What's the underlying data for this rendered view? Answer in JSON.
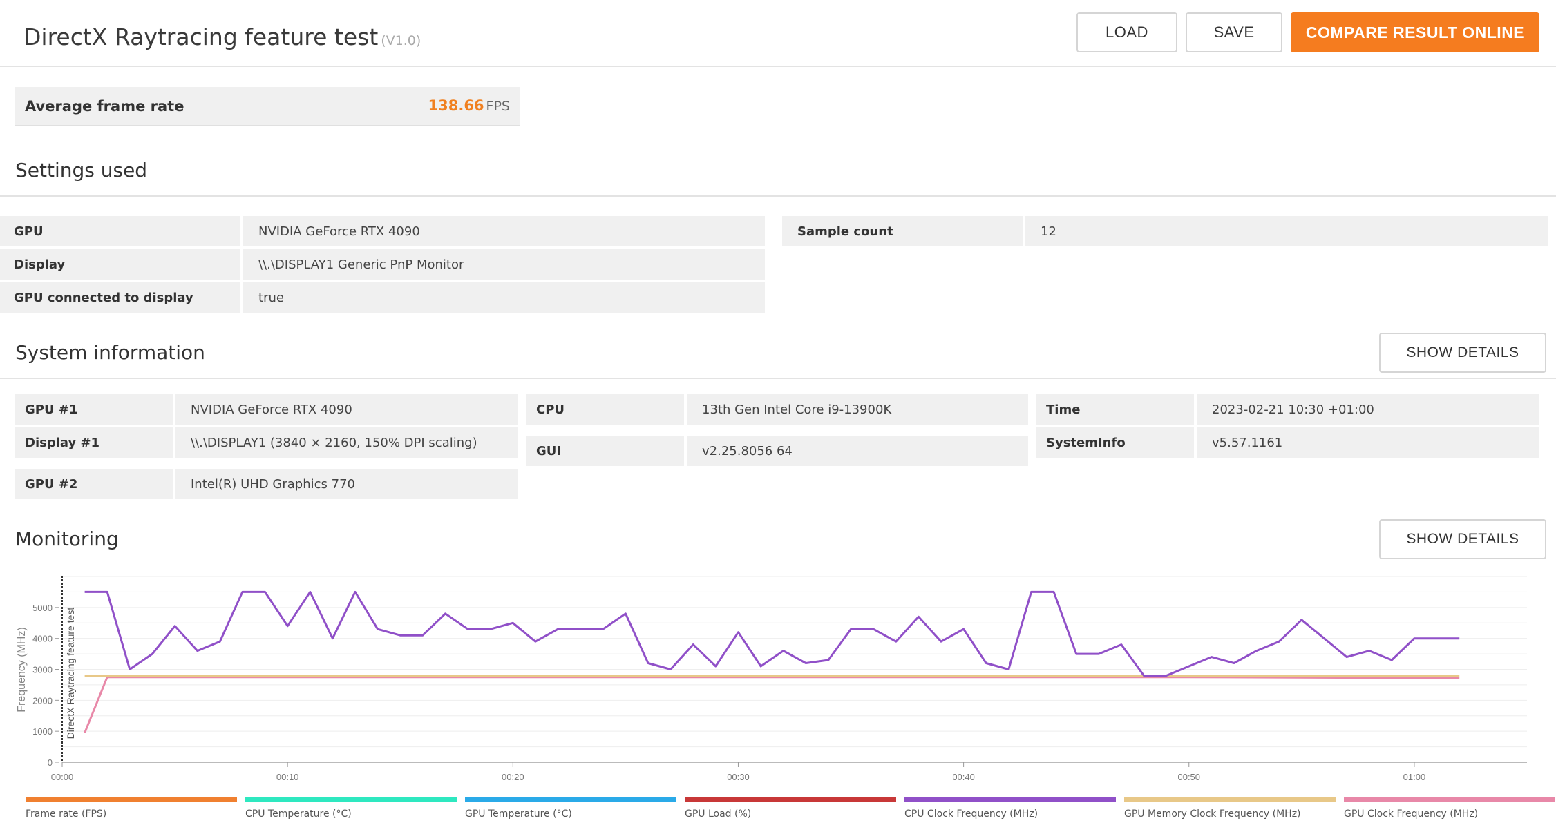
{
  "header": {
    "title": "DirectX Raytracing feature test",
    "version": "(V1.0)",
    "load_label": "LOAD",
    "save_label": "SAVE",
    "compare_label": "COMPARE RESULT ONLINE"
  },
  "average": {
    "label": "Average frame rate",
    "value": "138.66",
    "unit": "FPS"
  },
  "settings": {
    "title": "Settings used",
    "left": [
      {
        "key": "GPU",
        "value": "NVIDIA GeForce RTX 4090"
      },
      {
        "key": "Display",
        "value": "\\\\.\\DISPLAY1 Generic PnP Monitor"
      },
      {
        "key": "GPU connected to display",
        "value": "true"
      }
    ],
    "right": [
      {
        "key": "Sample count",
        "value": "12"
      }
    ]
  },
  "system": {
    "title": "System information",
    "details_label": "SHOW DETAILS",
    "col1": [
      {
        "key": "GPU #1",
        "value": "NVIDIA GeForce RTX 4090"
      },
      {
        "key": "Display #1",
        "value": "\\\\.\\DISPLAY1 (3840 × 2160, 150% DPI scaling)"
      },
      {
        "key": "GPU #2",
        "value": "Intel(R) UHD Graphics 770"
      }
    ],
    "col2": [
      {
        "key": "CPU",
        "value": "13th Gen Intel Core i9-13900K"
      },
      {
        "key": "GUI",
        "value": "v2.25.8056 64"
      }
    ],
    "col3": [
      {
        "key": "Time",
        "value": "2023-02-21 10:30 +01:00"
      },
      {
        "key": "SystemInfo",
        "value": "v5.57.1161"
      }
    ]
  },
  "monitoring": {
    "title": "Monitoring",
    "details_label": "SHOW DETAILS",
    "legend": [
      {
        "label": "Frame rate (FPS)",
        "color": "#f08030"
      },
      {
        "label": "CPU Temperature (°C)",
        "color": "#2ee8c0"
      },
      {
        "label": "GPU Temperature (°C)",
        "color": "#2aaae8"
      },
      {
        "label": "GPU Load (%)",
        "color": "#c83838"
      },
      {
        "label": "CPU Clock Frequency (MHz)",
        "color": "#9050c8"
      },
      {
        "label": "GPU Memory Clock Frequency (MHz)",
        "color": "#e8c888"
      },
      {
        "label": "GPU Clock Frequency (MHz)",
        "color": "#e888a8"
      }
    ]
  },
  "chart_data": {
    "type": "line",
    "title": "",
    "ylabel": "Frequency (MHz)",
    "marker_label": "DirectX Raytracing feature test",
    "xlabel": "",
    "x_ticks": [
      "00:00",
      "00:10",
      "00:20",
      "00:30",
      "00:40",
      "00:50",
      "01:00"
    ],
    "y_ticks": [
      "0",
      "1000",
      "2000",
      "3000",
      "4000",
      "5000"
    ],
    "xlim": [
      0,
      65
    ],
    "ylim": [
      0,
      6000
    ],
    "grid": true,
    "series": [
      {
        "name": "CPU Clock Frequency (MHz)",
        "color": "#9050c8",
        "x": [
          1,
          2,
          3,
          4,
          5,
          6,
          7,
          8,
          9,
          10,
          11,
          12,
          13,
          14,
          15,
          16,
          17,
          18,
          19,
          20,
          21,
          22,
          23,
          24,
          25,
          26,
          27,
          28,
          29,
          30,
          31,
          32,
          33,
          34,
          35,
          36,
          37,
          38,
          39,
          40,
          41,
          42,
          43,
          44,
          45,
          46,
          47,
          48,
          49,
          50,
          51,
          52,
          53,
          54,
          55,
          56,
          57,
          58,
          59,
          60,
          61,
          62
        ],
        "y": [
          5500,
          5500,
          3000,
          3500,
          4400,
          3600,
          3900,
          5500,
          5500,
          4400,
          5500,
          4000,
          5500,
          4300,
          4100,
          4100,
          4800,
          4300,
          4300,
          4500,
          3900,
          4300,
          4300,
          4300,
          4800,
          3200,
          3000,
          3800,
          3100,
          4200,
          3100,
          3600,
          3200,
          3300,
          4300,
          4300,
          3900,
          4700,
          3900,
          4300,
          3200,
          3000,
          5500,
          5500,
          3500,
          3500,
          3800,
          2800,
          2800,
          3100,
          3400,
          3200,
          3600,
          3900,
          4600,
          4000,
          3400,
          3600,
          3300,
          4000,
          4000,
          4000
        ]
      },
      {
        "name": "GPU Memory Clock Frequency (MHz)",
        "color": "#e8c888",
        "x": [
          1,
          2,
          62
        ],
        "y": [
          2800,
          2800,
          2800
        ]
      },
      {
        "name": "GPU Clock Frequency (MHz)",
        "color": "#e888a8",
        "x": [
          1,
          2,
          50,
          62
        ],
        "y": [
          950,
          2750,
          2750,
          2720
        ]
      }
    ]
  }
}
